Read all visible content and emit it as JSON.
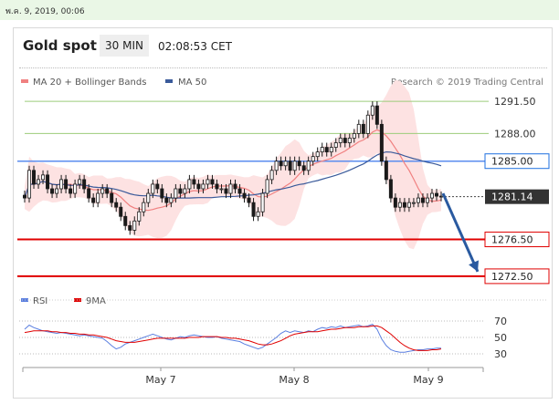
{
  "timestamp": "พ.ค. 9, 2019, 00:06",
  "header": {
    "title": "Gold spot",
    "interval": "30 MIN",
    "clock": "02:08:53 CET"
  },
  "legend": {
    "ma20": "MA 20 + Bollinger Bands",
    "ma50": "MA 50",
    "credit": "Research © 2019 Trading Central"
  },
  "rsi_legend": {
    "rsi": "RSI",
    "ma9": "9MA"
  },
  "colors": {
    "ma20": "#f08080",
    "ma50": "#3a5a9a",
    "band": "#fde2e2",
    "support": "#e00000",
    "resistance": "#9ccc7a",
    "pivot_line": "#5b8def",
    "pivot_label": "#1e6fe0",
    "arrow": "#2a5aa0",
    "candle": "#1a1a1a",
    "rsi": "#5b7fe0",
    "rsi_ma": "#e00000"
  },
  "chart_data": {
    "type": "candlestick",
    "y_range": [
      1271.5,
      1292.5
    ],
    "x_labels": [
      "May 7",
      "May 8",
      "May 9"
    ],
    "levels": [
      {
        "value": 1291.5,
        "label": "1291.50",
        "kind": "resistance"
      },
      {
        "value": 1288.0,
        "label": "1288.00",
        "kind": "resistance"
      },
      {
        "value": 1285.0,
        "label": "1285.00",
        "kind": "pivot"
      },
      {
        "value": 1276.5,
        "label": "1276.50",
        "kind": "support"
      },
      {
        "value": 1272.5,
        "label": "1272.50",
        "kind": "support"
      }
    ],
    "last_price": {
      "value": 1281.14,
      "label": "1281.14"
    },
    "forecast": {
      "from": 1281.5,
      "to": 1273.0
    },
    "closes": [
      1281,
      1284,
      1282.5,
      1283,
      1283.5,
      1282,
      1281.5,
      1282,
      1283,
      1282,
      1281.5,
      1282.5,
      1283,
      1282,
      1281,
      1280.5,
      1281.5,
      1282,
      1281.5,
      1280.5,
      1280,
      1279,
      1278,
      1277.5,
      1278.5,
      1279.5,
      1280.5,
      1281.5,
      1282.5,
      1282,
      1281,
      1280.5,
      1281,
      1282,
      1281.5,
      1282,
      1283,
      1282.5,
      1282,
      1282.5,
      1283,
      1282.5,
      1282,
      1282,
      1281.5,
      1282.5,
      1282,
      1281.5,
      1281,
      1280.5,
      1279,
      1279.5,
      1281.5,
      1283,
      1284,
      1285,
      1284.5,
      1285,
      1284,
      1285,
      1284.5,
      1284,
      1285,
      1285.5,
      1286,
      1286.5,
      1286,
      1286.5,
      1287,
      1287.5,
      1287,
      1287.5,
      1288,
      1289,
      1288,
      1290,
      1291,
      1289,
      1285,
      1283,
      1281,
      1280,
      1280.5,
      1280,
      1280.5,
      1280.5,
      1281,
      1280.5,
      1281,
      1281.5,
      1281.2,
      1281.14
    ],
    "rsi_axis": [
      70,
      50,
      30
    ],
    "rsi": [
      60,
      65,
      62,
      60,
      58,
      57,
      56,
      55,
      56,
      55,
      54,
      53,
      52,
      53,
      52,
      51,
      50,
      49,
      45,
      40,
      36,
      38,
      42,
      44,
      46,
      48,
      50,
      52,
      54,
      52,
      50,
      48,
      47,
      49,
      51,
      50,
      52,
      53,
      52,
      51,
      50,
      50,
      51,
      49,
      48,
      47,
      46,
      45,
      42,
      40,
      38,
      36,
      38,
      42,
      46,
      50,
      55,
      58,
      56,
      58,
      57,
      56,
      58,
      57,
      60,
      62,
      61,
      63,
      62,
      64,
      62,
      63,
      64,
      65,
      63,
      64,
      66,
      60,
      48,
      40,
      35,
      33,
      32,
      32,
      33,
      34,
      35,
      35,
      36,
      36,
      37,
      37
    ],
    "rsi_ma": [
      56,
      57,
      58,
      58,
      58,
      58,
      57,
      57,
      56,
      56,
      55,
      55,
      54,
      54,
      53,
      53,
      52,
      51,
      50,
      48,
      46,
      45,
      44,
      44,
      44,
      45,
      46,
      47,
      48,
      49,
      49,
      49,
      49,
      49,
      49,
      49,
      50,
      50,
      50,
      51,
      51,
      51,
      51,
      50,
      50,
      49,
      49,
      48,
      47,
      46,
      44,
      42,
      41,
      41,
      42,
      44,
      46,
      49,
      52,
      54,
      55,
      56,
      57,
      57,
      57,
      58,
      59,
      60,
      60,
      61,
      62,
      62,
      62,
      63,
      63,
      63,
      64,
      64,
      62,
      58,
      54,
      49,
      44,
      40,
      37,
      35,
      34,
      34,
      34,
      35,
      35,
      36
    ]
  }
}
